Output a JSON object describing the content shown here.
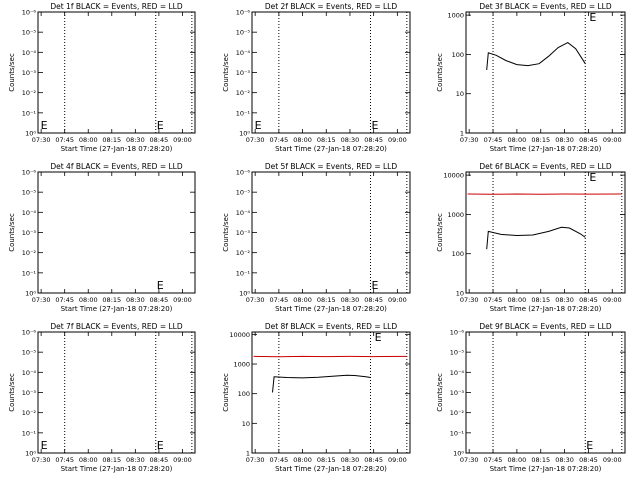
{
  "chart_data": [
    {
      "type": "line",
      "title": "Det 1f BLACK = Events, RED = LLD",
      "xlabel": "Start Time (27-Jan-18 07:28:20)",
      "ylabel": "Counts/sec",
      "x_ticks": [
        "07:30",
        "07:45",
        "08:00",
        "08:15",
        "08:30",
        "08:45",
        "09:00"
      ],
      "xlim": [
        "07:28",
        "09:08"
      ],
      "y_ticks": [
        "10⁰",
        "10⁻¹",
        "10⁻²",
        "10⁻³",
        "10⁻⁴",
        "10⁻⁵",
        "10⁻⁶"
      ],
      "y_scale": "linear",
      "ylim": [
        0,
        1
      ],
      "vlines": [
        "07:45",
        "08:43",
        "09:06"
      ],
      "markers": [
        {
          "x": "07:29",
          "text": "E"
        },
        {
          "x": "08:43",
          "text": "E"
        }
      ],
      "series": []
    },
    {
      "type": "line",
      "title": "Det 2f BLACK = Events, RED = LLD",
      "xlabel": "Start Time (27-Jan-18 07:28:20)",
      "ylabel": "Counts/sec",
      "x_ticks": [
        "07:30",
        "07:45",
        "08:00",
        "08:15",
        "08:30",
        "08:45",
        "09:00"
      ],
      "xlim": [
        "07:28",
        "09:08"
      ],
      "y_ticks": [
        "10⁰",
        "10⁻¹",
        "10⁻²",
        "10⁻³",
        "10⁻⁴",
        "10⁻⁵",
        "10⁻⁶"
      ],
      "y_scale": "linear",
      "ylim": [
        0,
        1
      ],
      "vlines": [
        "07:45",
        "08:43",
        "09:06"
      ],
      "markers": [
        {
          "x": "07:29",
          "text": "E"
        },
        {
          "x": "08:43",
          "text": "E"
        }
      ],
      "series": []
    },
    {
      "type": "line",
      "title": "Det 3f BLACK = Events, RED = LLD",
      "xlabel": "Start Time (27-Jan-18 07:28:20)",
      "ylabel": "Counts/sec",
      "x_ticks": [
        "07:30",
        "07:45",
        "08:00",
        "08:15",
        "08:30",
        "08:45",
        "09:00"
      ],
      "xlim": [
        "07:28",
        "09:08"
      ],
      "y_ticks": [
        "1",
        "10",
        "100",
        "1000"
      ],
      "y_scale": "log",
      "ylim": [
        1,
        1200
      ],
      "vlines": [
        "07:45",
        "08:43",
        "09:06"
      ],
      "markers": [
        {
          "x": "08:45",
          "text": "E"
        }
      ],
      "series": [
        {
          "color": "#000000",
          "x": [
            "07:41",
            "07:42",
            "07:47",
            "07:53",
            "08:00",
            "08:07",
            "08:14",
            "08:20",
            "08:26",
            "08:32",
            "08:37",
            "08:43"
          ],
          "values": [
            40,
            110,
            95,
            70,
            55,
            52,
            58,
            90,
            150,
            200,
            140,
            58
          ]
        }
      ]
    },
    {
      "type": "line",
      "title": "Det 4f BLACK = Events, RED = LLD",
      "xlabel": "Start Time (27-Jan-18 07:28:20)",
      "ylabel": "Counts/sec",
      "x_ticks": [
        "07:30",
        "07:45",
        "08:00",
        "08:15",
        "08:30",
        "08:45",
        "09:00"
      ],
      "xlim": [
        "07:28",
        "09:08"
      ],
      "y_ticks": [
        "10⁰",
        "10⁻¹",
        "10⁻²",
        "10⁻³",
        "10⁻⁴",
        "10⁻⁵",
        "10⁻⁶"
      ],
      "y_scale": "linear",
      "ylim": [
        0,
        1
      ],
      "vlines": [],
      "markers": [
        {
          "x": "08:43",
          "text": "E"
        }
      ],
      "series": []
    },
    {
      "type": "line",
      "title": "Det 5f BLACK = Events, RED = LLD",
      "xlabel": "Start Time (27-Jan-18 07:28:20)",
      "ylabel": "Counts/sec",
      "x_ticks": [
        "07:30",
        "07:45",
        "08:00",
        "08:15",
        "08:30",
        "08:45",
        "09:00"
      ],
      "xlim": [
        "07:28",
        "09:08"
      ],
      "y_ticks": [
        "10⁰",
        "10⁻¹",
        "10⁻²",
        "10⁻³",
        "10⁻⁴",
        "10⁻⁵",
        "10⁻⁶"
      ],
      "y_scale": "linear",
      "ylim": [
        0,
        1
      ],
      "vlines": [
        "08:43",
        "09:06"
      ],
      "markers": [
        {
          "x": "08:43",
          "text": "E"
        }
      ],
      "series": []
    },
    {
      "type": "line",
      "title": "Det 6f BLACK = Events, RED = LLD",
      "xlabel": "Start Time (27-Jan-18 07:28:20)",
      "ylabel": "Counts/sec",
      "x_ticks": [
        "07:30",
        "07:45",
        "08:00",
        "08:15",
        "08:30",
        "08:45",
        "09:00"
      ],
      "xlim": [
        "07:28",
        "09:08"
      ],
      "y_ticks": [
        "10",
        "100",
        "1000",
        "10000"
      ],
      "y_scale": "log",
      "ylim": [
        10,
        12000
      ],
      "vlines": [
        "07:45",
        "08:43",
        "09:06"
      ],
      "markers": [
        {
          "x": "08:45",
          "text": "E"
        }
      ],
      "series": [
        {
          "color": "#cc0000",
          "x": [
            "07:29",
            "07:45",
            "08:00",
            "08:15",
            "08:30",
            "08:45",
            "09:06"
          ],
          "values": [
            3300,
            3250,
            3300,
            3250,
            3300,
            3280,
            3300
          ]
        },
        {
          "color": "#000000",
          "x": [
            "07:41",
            "07:42",
            "07:50",
            "08:00",
            "08:10",
            "08:20",
            "08:28",
            "08:33",
            "08:40",
            "08:43"
          ],
          "values": [
            130,
            370,
            310,
            290,
            300,
            370,
            470,
            450,
            320,
            260
          ]
        }
      ]
    },
    {
      "type": "line",
      "title": "Det 7f BLACK = Events, RED = LLD",
      "xlabel": "Start Time (27-Jan-18 07:28:20)",
      "ylabel": "Counts/sec",
      "x_ticks": [
        "07:30",
        "07:45",
        "08:00",
        "08:15",
        "08:30",
        "08:45",
        "09:00"
      ],
      "xlim": [
        "07:28",
        "09:08"
      ],
      "y_ticks": [
        "10⁰",
        "10⁻¹",
        "10⁻²",
        "10⁻³",
        "10⁻⁴",
        "10⁻⁵",
        "10⁻⁶"
      ],
      "y_scale": "linear",
      "ylim": [
        0,
        1
      ],
      "vlines": [
        "07:45",
        "08:43",
        "09:06"
      ],
      "markers": [
        {
          "x": "07:29",
          "text": "E"
        },
        {
          "x": "08:43",
          "text": "E"
        }
      ],
      "series": []
    },
    {
      "type": "line",
      "title": "Det 8f BLACK = Events, RED = LLD",
      "xlabel": "Start Time (27-Jan-18 07:28:20)",
      "ylabel": "Counts/sec",
      "x_ticks": [
        "07:30",
        "07:45",
        "08:00",
        "08:15",
        "08:30",
        "08:45",
        "09:00"
      ],
      "xlim": [
        "07:28",
        "09:08"
      ],
      "y_ticks": [
        "1",
        "10",
        "100",
        "1000",
        "10000"
      ],
      "y_scale": "log",
      "ylim": [
        1,
        12000
      ],
      "vlines": [
        "07:45",
        "08:43",
        "09:06"
      ],
      "markers": [
        {
          "x": "08:45",
          "text": "E"
        }
      ],
      "series": [
        {
          "color": "#cc0000",
          "x": [
            "07:29",
            "07:45",
            "08:00",
            "08:15",
            "08:30",
            "08:45",
            "09:06"
          ],
          "values": [
            1800,
            1750,
            1800,
            1780,
            1800,
            1780,
            1800
          ]
        },
        {
          "color": "#000000",
          "x": [
            "07:41",
            "07:42",
            "07:50",
            "08:00",
            "08:10",
            "08:20",
            "08:28",
            "08:33",
            "08:40",
            "08:43"
          ],
          "values": [
            110,
            370,
            350,
            340,
            360,
            390,
            420,
            410,
            370,
            350
          ]
        }
      ]
    },
    {
      "type": "line",
      "title": "Det 9f BLACK = Events, RED = LLD",
      "xlabel": "Start Time (27-Jan-18 07:28:20)",
      "ylabel": "Counts/sec",
      "x_ticks": [
        "07:30",
        "07:45",
        "08:00",
        "08:15",
        "08:30",
        "08:45",
        "09:00"
      ],
      "xlim": [
        "07:28",
        "09:08"
      ],
      "y_ticks": [
        "10⁰",
        "10⁻¹",
        "10⁻²",
        "10⁻³",
        "10⁻⁴",
        "10⁻⁵",
        "10⁻⁶"
      ],
      "y_scale": "linear",
      "ylim": [
        0,
        1
      ],
      "vlines": [
        "07:45",
        "08:43",
        "09:06"
      ],
      "markers": [
        {
          "x": "08:43",
          "text": "E"
        }
      ],
      "series": []
    }
  ]
}
